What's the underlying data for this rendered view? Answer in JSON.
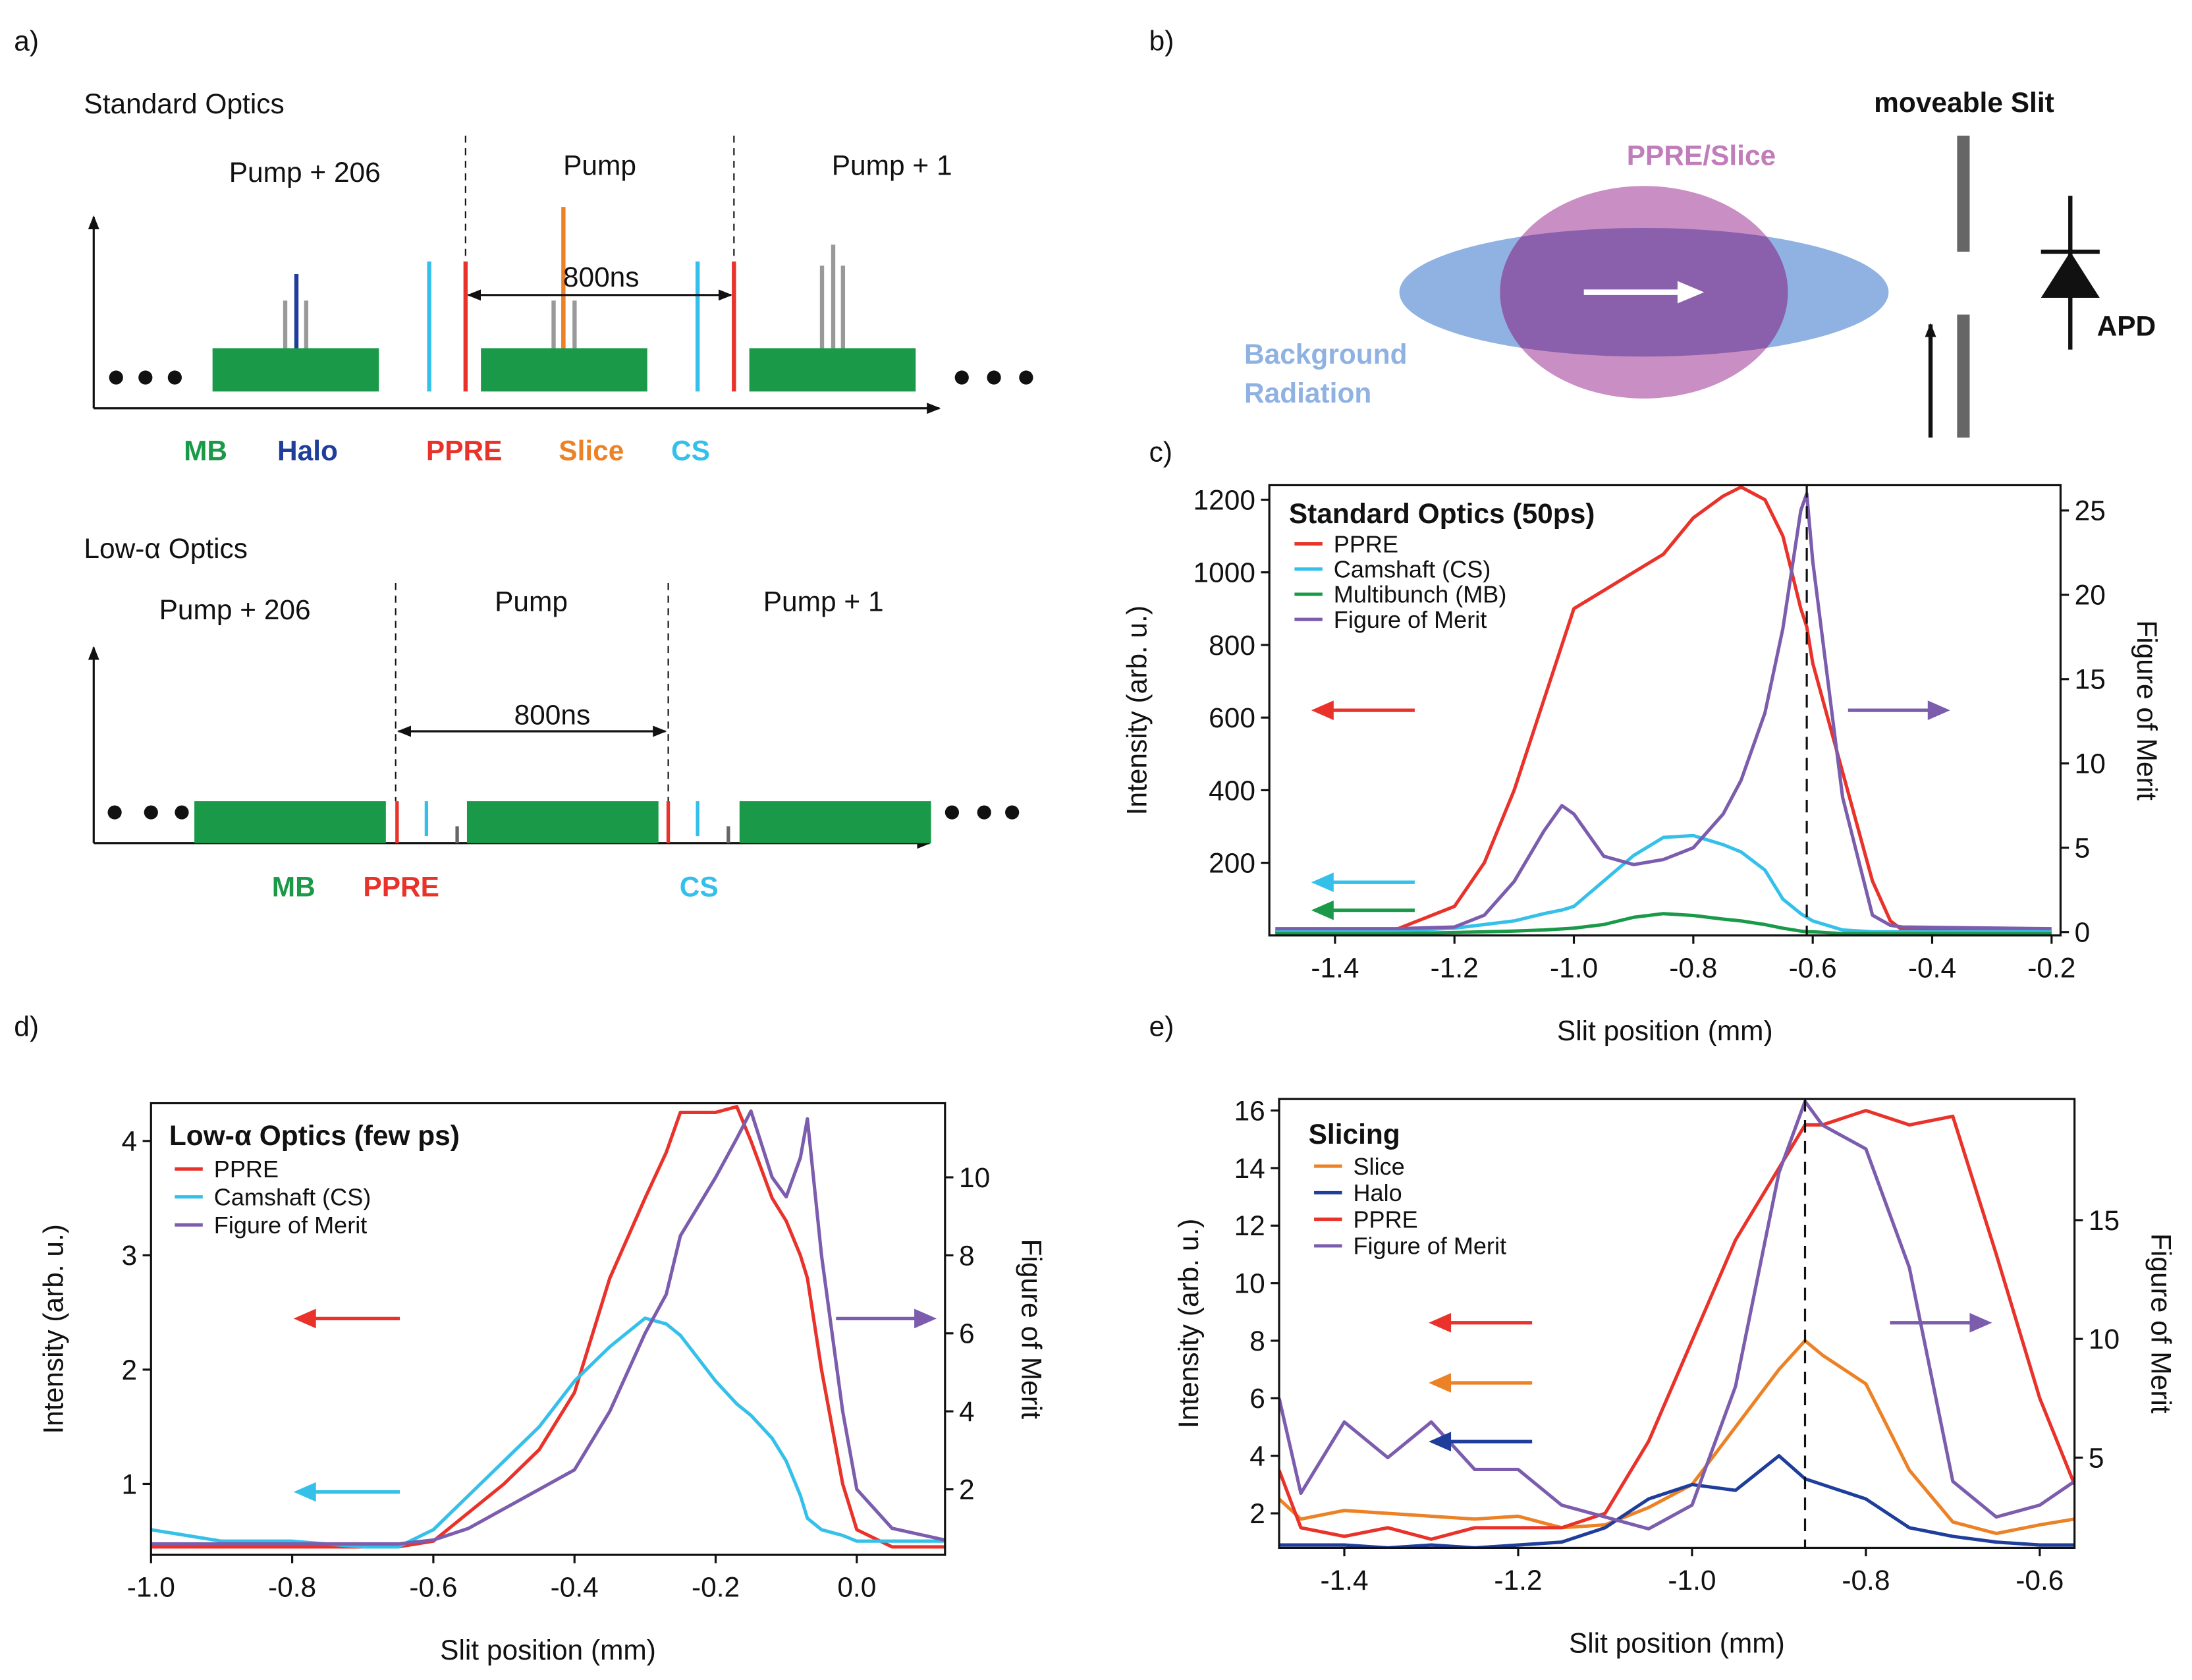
{
  "panels": [
    "a)",
    "b)"
  ],
  "diagrams": {
    "a": {
      "standard": {
        "title": "Standard Optics",
        "left": "Pump + 206",
        "middle": "Pump",
        "right": "Pump + 1",
        "span": "800ns",
        "labels": [
          "MB",
          "Halo",
          "PPRE",
          "Slice",
          "CS"
        ]
      },
      "low_alpha": {
        "title": "Low-α Optics",
        "left": "Pump + 206",
        "middle": "Pump",
        "right": "Pump + 1",
        "span": "800ns",
        "labels": [
          "MB",
          "PPRE",
          "CS"
        ]
      }
    },
    "b": {
      "slit": "moveable Slit",
      "beam": "PPRE/Slice",
      "background": [
        "Background",
        "Radiation"
      ],
      "detector": "APD"
    }
  },
  "chart_data": [
    {
      "type": "line",
      "panel": "c)",
      "title": "Standard Optics (50ps)",
      "x_label": "Slit position (mm)",
      "y_label": "Intensity (arb. u.)",
      "y2_label": "Figure of Merit",
      "x": [
        -1.5,
        -1.3,
        -1.2,
        -1.15,
        -1.1,
        -1.05,
        -1.02,
        -1.0,
        -0.95,
        -0.9,
        -0.85,
        -0.8,
        -0.75,
        -0.72,
        -0.68,
        -0.65,
        -0.62,
        -0.61,
        -0.6,
        -0.55,
        -0.5,
        -0.47,
        -0.45,
        -0.2
      ],
      "series": [
        {
          "name": "PPRE",
          "color": "#e8322a",
          "values": [
            10,
            15,
            80,
            200,
            400,
            650,
            800,
            900,
            950,
            1000,
            1050,
            1150,
            1210,
            1235,
            1200,
            1100,
            900,
            850,
            750,
            450,
            150,
            40,
            15,
            10
          ]
        },
        {
          "name": "Camshaft (CS)",
          "color": "#35c0ea",
          "values": [
            10,
            12,
            20,
            30,
            40,
            60,
            70,
            80,
            150,
            220,
            270,
            275,
            250,
            230,
            180,
            100,
            60,
            50,
            40,
            15,
            10,
            10,
            10,
            10
          ]
        },
        {
          "name": "Multibunch (MB)",
          "color": "#1a9a48",
          "values": [
            5,
            5,
            8,
            10,
            12,
            15,
            18,
            20,
            30,
            50,
            60,
            55,
            45,
            40,
            30,
            20,
            12,
            10,
            10,
            5,
            5,
            5,
            5,
            5
          ]
        },
        {
          "name": "Figure of Merit",
          "color": "#7b5cad",
          "axis": "y2",
          "values": [
            0.2,
            0.2,
            0.3,
            1,
            3,
            6,
            7.5,
            7,
            4.5,
            4,
            4.3,
            5,
            7,
            9,
            13,
            18,
            25,
            26,
            22,
            8,
            1,
            0.4,
            0.3,
            0.2
          ]
        }
      ],
      "xlim": [
        -1.51,
        -0.185
      ],
      "xticks": [
        -1.4,
        -1.2,
        {
          "value": -1,
          "label": "-1.0"
        },
        -0.8,
        -0.6,
        -0.4,
        -0.2
      ],
      "ylim": [
        0,
        1240
      ],
      "yticks": [
        200,
        400,
        600,
        800,
        1000,
        1200
      ],
      "y2lim": [
        -0.2,
        26.5
      ],
      "y2ticks": [
        0,
        5,
        10,
        15,
        20,
        25
      ],
      "vline": -0.61
    },
    {
      "type": "line",
      "panel": "d)",
      "title": "Low-α Optics (few ps)",
      "x_label": "Slit position (mm)",
      "y_label": "Intensity (arb. u.)",
      "y2_label": "Figure of Merit",
      "x": [
        -1.0,
        -0.9,
        -0.8,
        -0.7,
        -0.65,
        -0.6,
        -0.55,
        -0.5,
        -0.45,
        -0.4,
        -0.35,
        -0.3,
        -0.27,
        -0.25,
        -0.2,
        -0.17,
        -0.15,
        -0.12,
        -0.1,
        -0.08,
        -0.07,
        -0.05,
        -0.02,
        0.0,
        0.05,
        0.125
      ],
      "series": [
        {
          "name": "PPRE",
          "color": "#e8322a",
          "values": [
            0.45,
            0.45,
            0.45,
            0.45,
            0.45,
            0.5,
            0.75,
            1.0,
            1.3,
            1.8,
            2.8,
            3.5,
            3.9,
            4.25,
            4.25,
            4.3,
            4.0,
            3.5,
            3.3,
            3.0,
            2.8,
            2.0,
            1.0,
            0.6,
            0.45,
            0.45
          ]
        },
        {
          "name": "Camshaft (CS)",
          "color": "#35c0ea",
          "values": [
            0.6,
            0.5,
            0.5,
            0.45,
            0.45,
            0.6,
            0.9,
            1.2,
            1.5,
            1.9,
            2.2,
            2.45,
            2.4,
            2.3,
            1.9,
            1.7,
            1.6,
            1.4,
            1.2,
            0.9,
            0.7,
            0.6,
            0.55,
            0.5,
            0.5,
            0.5
          ]
        },
        {
          "name": "Figure of Merit",
          "color": "#7b5cad",
          "axis": "y2",
          "values": [
            0.6,
            0.6,
            0.6,
            0.6,
            0.6,
            0.7,
            1.0,
            1.5,
            2,
            2.5,
            4,
            6,
            7,
            8.5,
            10,
            11,
            11.7,
            10,
            9.5,
            10.5,
            11.5,
            8,
            4,
            2,
            1,
            0.7
          ]
        }
      ],
      "xlim": [
        -1.0,
        0.125
      ],
      "xticks": [
        {
          "value": -1,
          "label": "-1.0"
        },
        -0.8,
        -0.6,
        -0.4,
        -0.2,
        {
          "value": 0,
          "label": "0.0"
        }
      ],
      "ylim": [
        0.38,
        4.33
      ],
      "yticks": [
        1,
        2,
        3,
        4
      ],
      "y2lim": [
        0.32,
        11.9
      ],
      "y2ticks": [
        2,
        4,
        6,
        8,
        10
      ]
    },
    {
      "type": "line",
      "panel": "e)",
      "title": "Slicing",
      "x_label": "Slit position (mm)",
      "y_label": "Intensity (arb. u.)",
      "y2_label": "Figure of Merit",
      "x": [
        -1.475,
        -1.45,
        -1.4,
        -1.35,
        -1.3,
        -1.25,
        -1.2,
        -1.15,
        -1.1,
        -1.05,
        -1.0,
        -0.95,
        -0.9,
        -0.87,
        -0.85,
        -0.8,
        -0.75,
        -0.7,
        -0.65,
        -0.6,
        -0.56
      ],
      "series": [
        {
          "name": "Slice",
          "color": "#ec8225",
          "values": [
            2.5,
            1.8,
            2.1,
            2.0,
            1.9,
            1.8,
            1.9,
            1.5,
            1.6,
            2.2,
            3.0,
            5.0,
            7.0,
            8.0,
            7.5,
            6.5,
            3.5,
            1.7,
            1.3,
            1.6,
            1.8
          ]
        },
        {
          "name": "Halo",
          "color": "#1f3d9a",
          "values": [
            0.9,
            0.9,
            0.9,
            0.8,
            0.9,
            0.8,
            0.9,
            1.0,
            1.5,
            2.5,
            3.0,
            2.8,
            4.0,
            3.2,
            3.0,
            2.5,
            1.5,
            1.2,
            1.0,
            0.9,
            0.9
          ]
        },
        {
          "name": "PPRE",
          "color": "#e8322a",
          "values": [
            3.5,
            1.5,
            1.2,
            1.5,
            1.1,
            1.5,
            1.5,
            1.5,
            2.0,
            4.5,
            8.0,
            11.5,
            14.0,
            15.5,
            15.5,
            16.0,
            15.5,
            15.8,
            11.0,
            6.0,
            3.0
          ]
        },
        {
          "name": "Figure of Merit",
          "color": "#7b5cad",
          "axis": "y2",
          "values": [
            7.5,
            3.5,
            6.5,
            5,
            6.5,
            4.5,
            4.5,
            3,
            2.5,
            2.0,
            3.0,
            8,
            17,
            20,
            19,
            18,
            13,
            4,
            2.5,
            3,
            4
          ]
        }
      ],
      "xlim": [
        -1.475,
        -0.56
      ],
      "xticks": [
        -1.4,
        -1.2,
        {
          "value": -1,
          "label": "-1.0"
        },
        -0.8,
        -0.6
      ],
      "ylim": [
        0.8,
        16.4
      ],
      "yticks": [
        2,
        4,
        6,
        8,
        10,
        12,
        14,
        16
      ],
      "y2lim": [
        1.2,
        20.1
      ],
      "y2ticks": [
        5,
        10,
        15
      ],
      "vline": -0.87
    }
  ]
}
